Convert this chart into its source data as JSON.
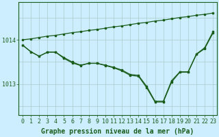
{
  "title": "Graphe pression niveau de la mer (hPa)",
  "background_color": "#cceeff",
  "grid_color": "#aacccc",
  "line_color": "#1a5c1a",
  "xlim": [
    -0.5,
    23.5
  ],
  "ylim": [
    1012.3,
    1014.85
  ],
  "yticks": [
    1013,
    1014
  ],
  "xticks": [
    0,
    1,
    2,
    3,
    4,
    5,
    6,
    7,
    8,
    9,
    10,
    11,
    12,
    13,
    14,
    15,
    16,
    17,
    18,
    19,
    20,
    21,
    22,
    23
  ],
  "series_main": [
    1013.88,
    1013.73,
    1013.63,
    1013.72,
    1013.72,
    1013.58,
    1013.48,
    1013.42,
    1013.47,
    1013.47,
    1013.42,
    1013.37,
    1013.3,
    1013.2,
    1013.18,
    1012.92,
    1012.6,
    1012.6,
    1013.05,
    1013.27,
    1013.27,
    1013.67,
    1013.8,
    1014.15
  ],
  "series_mid": [
    1013.88,
    1013.73,
    1013.63,
    1013.72,
    1013.72,
    1013.6,
    1013.5,
    1013.43,
    1013.47,
    1013.47,
    1013.43,
    1013.38,
    1013.32,
    1013.22,
    1013.2,
    1012.95,
    1012.62,
    1012.62,
    1013.08,
    1013.28,
    1013.28,
    1013.68,
    1013.82,
    1014.18
  ],
  "series_upper": [
    1014.0,
    1014.02,
    1014.05,
    1014.08,
    1014.1,
    1014.13,
    1014.16,
    1014.18,
    1014.21,
    1014.23,
    1014.26,
    1014.29,
    1014.31,
    1014.34,
    1014.37,
    1014.39,
    1014.42,
    1014.44,
    1014.47,
    1014.5,
    1014.52,
    1014.55,
    1014.57,
    1014.6
  ],
  "font_size_label": 7,
  "font_size_tick": 6,
  "font_family": "monospace"
}
